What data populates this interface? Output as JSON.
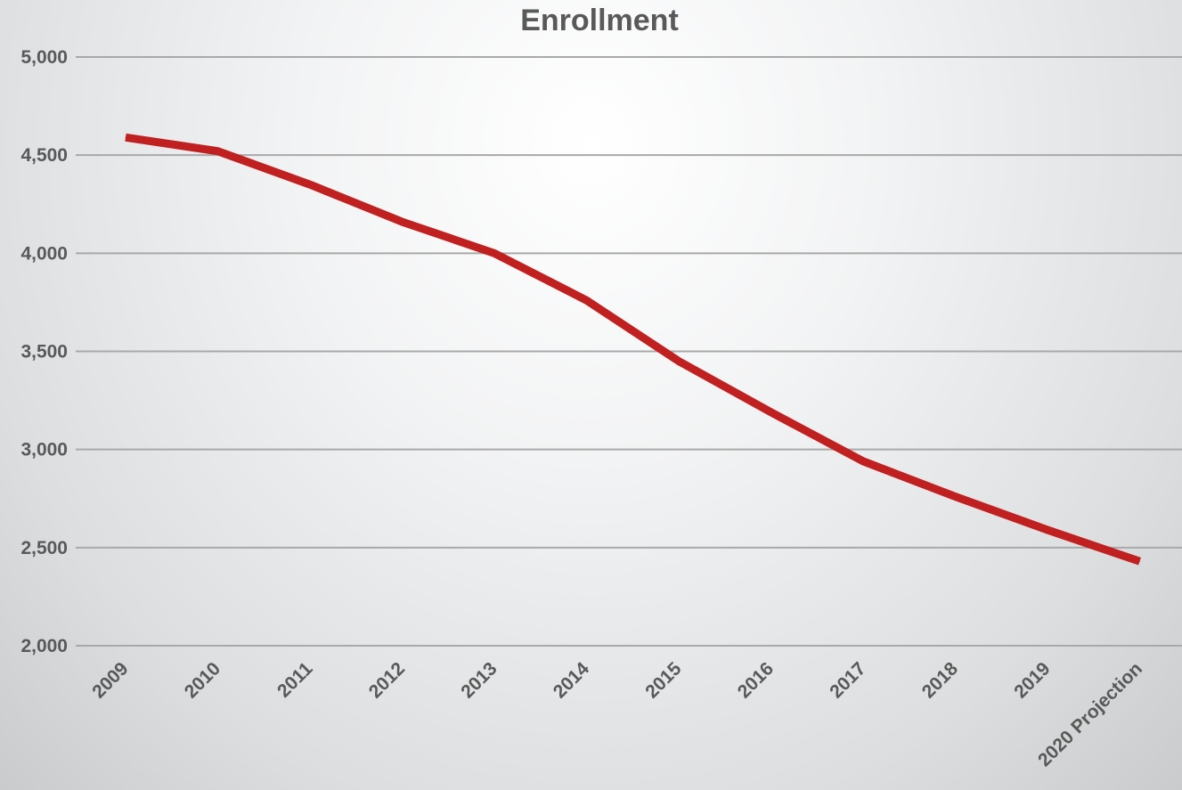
{
  "chart_data": {
    "type": "line",
    "title": "Enrollment",
    "categories": [
      "2009",
      "2010",
      "2011",
      "2012",
      "2013",
      "2014",
      "2015",
      "2016",
      "2017",
      "2018",
      "2019",
      "2020 Projection"
    ],
    "series": [
      {
        "values": [
          4590,
          4520,
          4350,
          4160,
          4000,
          3760,
          3450,
          3190,
          2940,
          2760,
          2590,
          2430
        ]
      }
    ],
    "y_ticks": [
      "5,000",
      "4,500",
      "4,000",
      "3,500",
      "3,000",
      "2,500",
      "2,000"
    ],
    "y_tick_values": [
      5000,
      4500,
      4000,
      3500,
      3000,
      2500,
      2000
    ],
    "ylim": [
      2000,
      5000
    ],
    "grid": true,
    "legend": "none",
    "colors": {
      "line": "#c0201f",
      "grid": "#a9a9a9",
      "text": "#595959"
    }
  }
}
